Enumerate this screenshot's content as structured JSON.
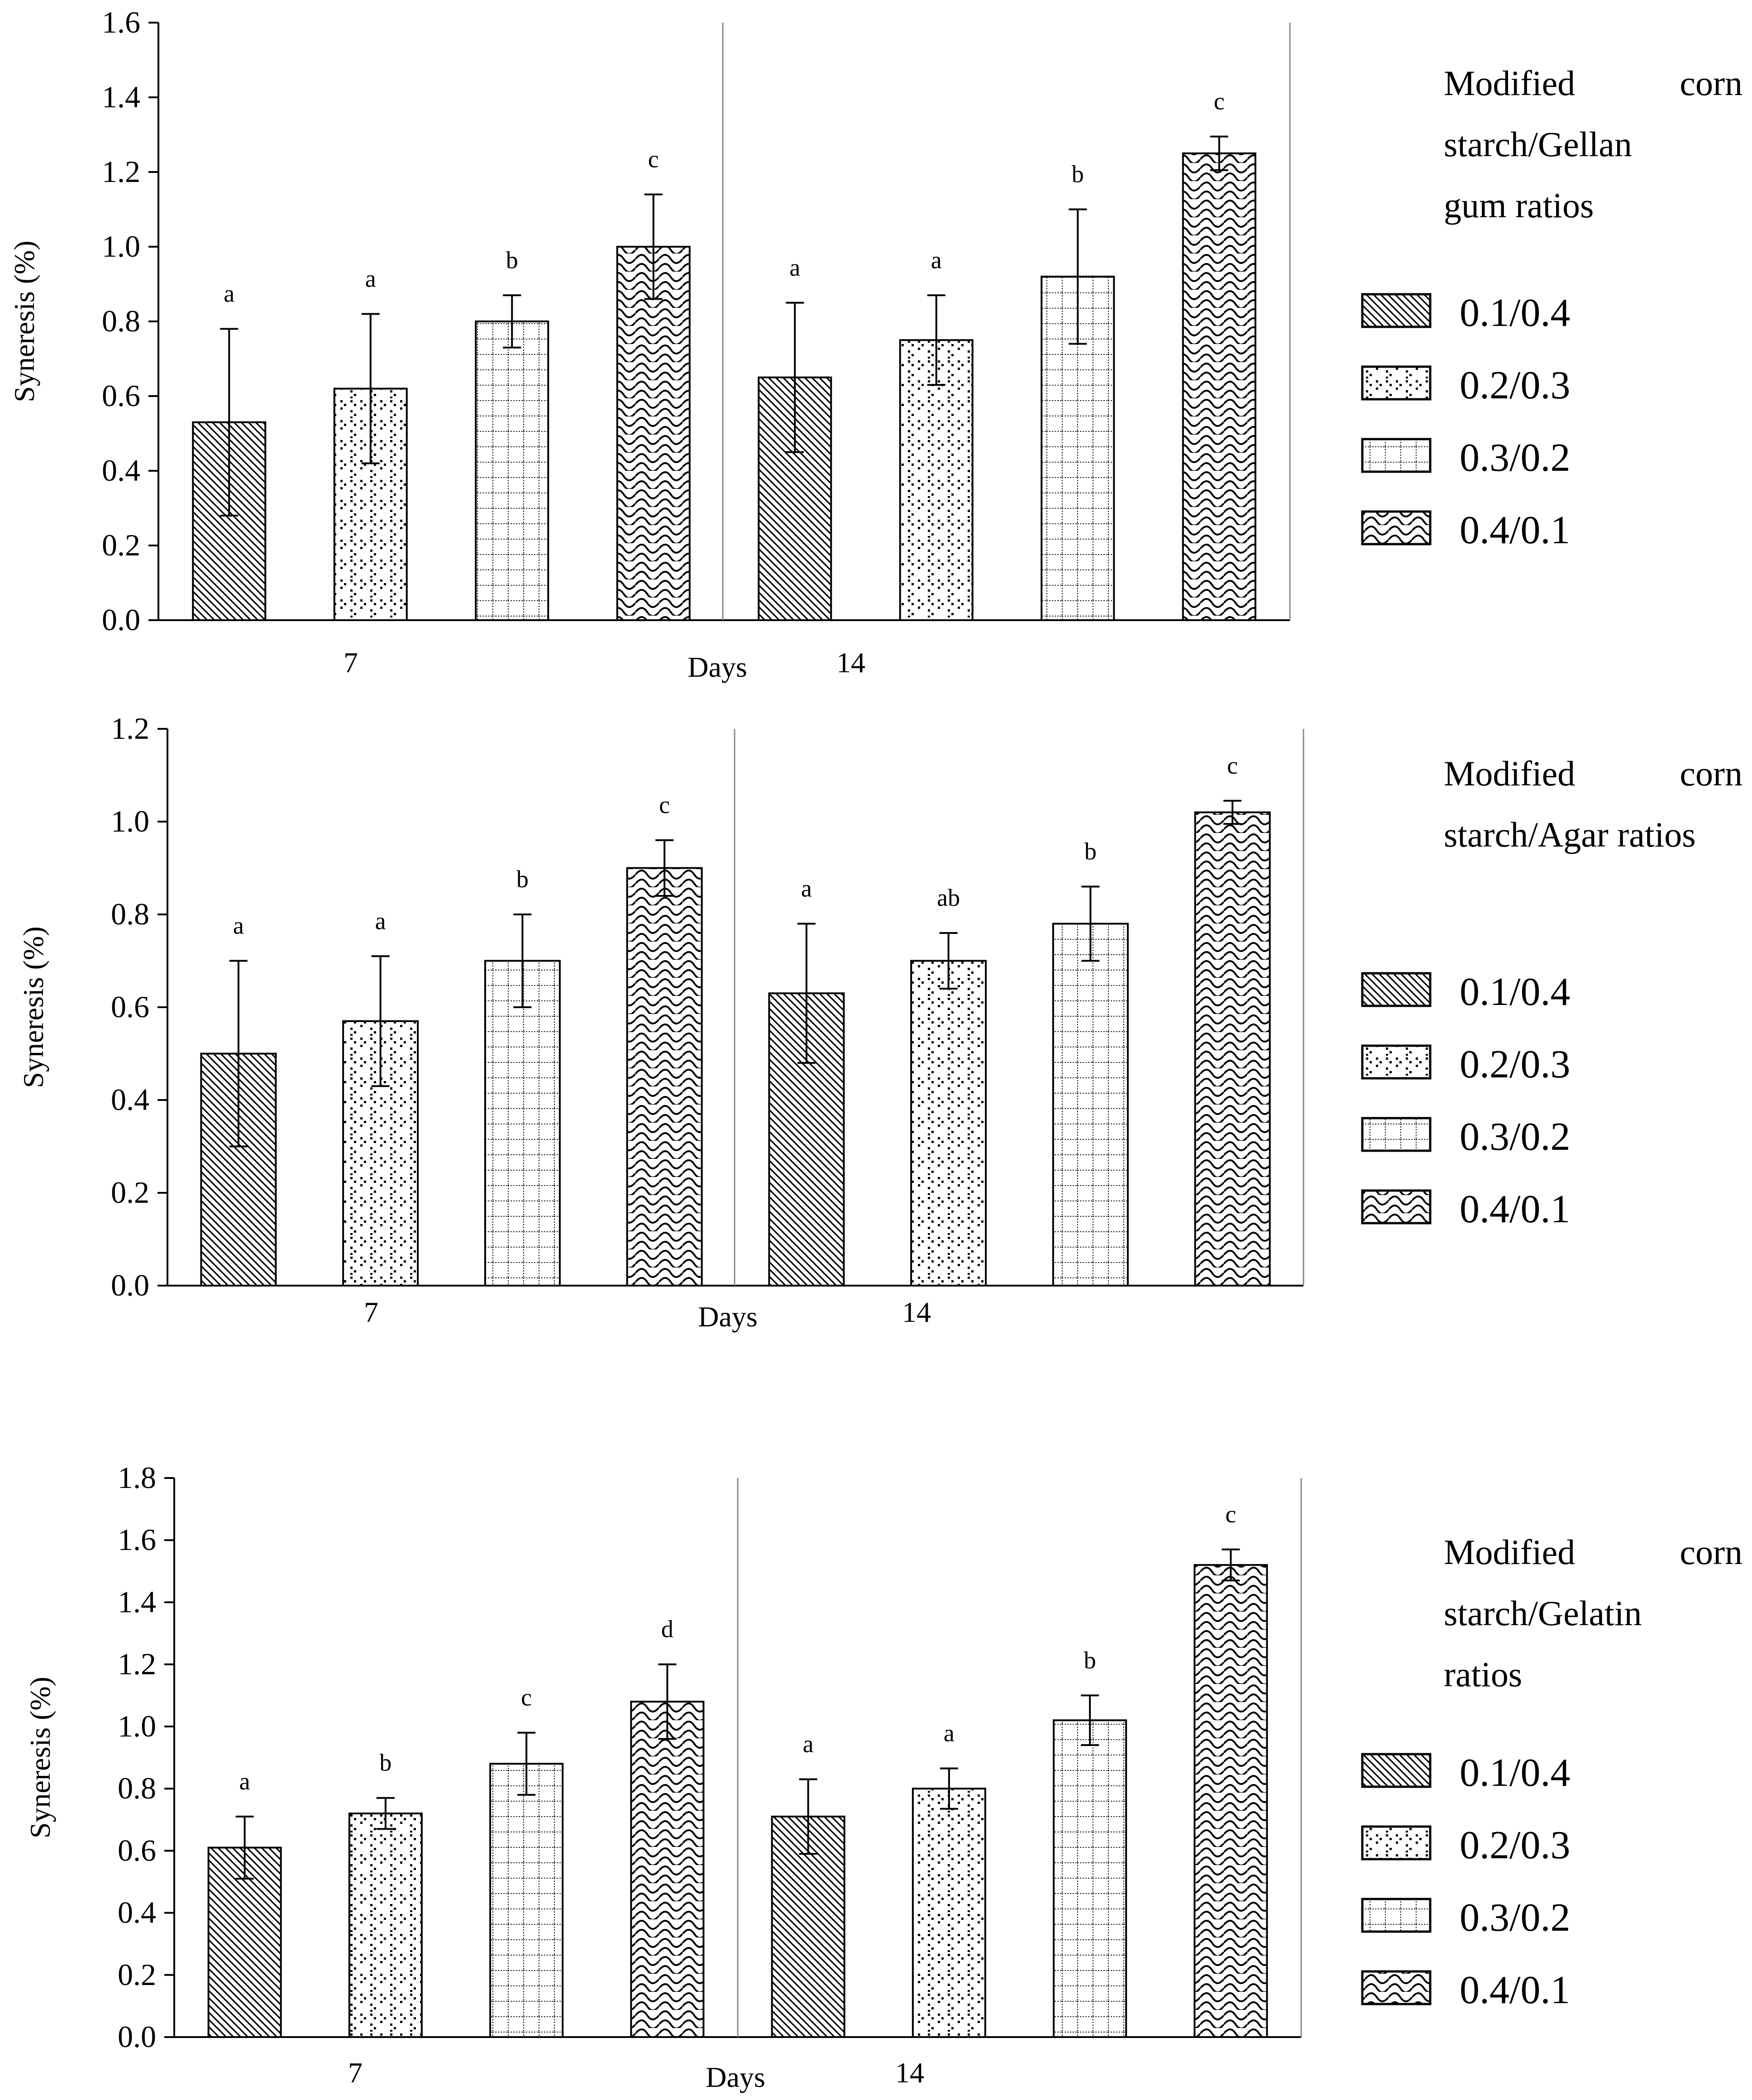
{
  "chart_data": [
    {
      "type": "bar",
      "ylabel": "Syneresis (%)",
      "xlabel": "Days",
      "groups": [
        "7",
        "14"
      ],
      "ylim": [
        0,
        1.6
      ],
      "yticks": [
        "0.0",
        "0.2",
        "0.4",
        "0.6",
        "0.8",
        "1.0",
        "1.2",
        "1.4",
        "1.6"
      ],
      "legend_title_lines": [
        "Modified corn",
        "starch/Gellan",
        "gum ratios"
      ],
      "legend_placement": "right",
      "series": [
        {
          "name": "0.1/0.4",
          "pattern": "diagonal-lines",
          "values": [
            0.53,
            0.65
          ],
          "errors": [
            0.25,
            0.2
          ],
          "letters": [
            "a",
            "a"
          ]
        },
        {
          "name": "0.2/0.3",
          "pattern": "dots",
          "values": [
            0.62,
            0.75
          ],
          "errors": [
            0.2,
            0.12
          ],
          "letters": [
            "a",
            "a"
          ]
        },
        {
          "name": "0.3/0.2",
          "pattern": "dotted-grid",
          "values": [
            0.8,
            0.92
          ],
          "errors": [
            0.07,
            0.18
          ],
          "letters": [
            "b",
            "b"
          ]
        },
        {
          "name": "0.4/0.1",
          "pattern": "waves",
          "values": [
            1.0,
            1.25
          ],
          "errors": [
            0.14,
            0.045
          ],
          "letters": [
            "c",
            "c"
          ]
        }
      ]
    },
    {
      "type": "bar",
      "ylabel": "Syneresis (%)",
      "xlabel": "Days",
      "groups": [
        "7",
        "14"
      ],
      "ylim": [
        0,
        1.2
      ],
      "yticks": [
        "0.0",
        "0.2",
        "0.4",
        "0.6",
        "0.8",
        "1.0",
        "1.2"
      ],
      "legend_title_lines": [
        "Modified corn",
        "starch/Agar ratios"
      ],
      "legend_placement": "right",
      "series": [
        {
          "name": "0.1/0.4",
          "pattern": "diagonal-lines",
          "values": [
            0.5,
            0.63
          ],
          "errors": [
            0.2,
            0.15
          ],
          "letters": [
            "a",
            "a"
          ]
        },
        {
          "name": "0.2/0.3",
          "pattern": "dots",
          "values": [
            0.57,
            0.7
          ],
          "errors": [
            0.14,
            0.06
          ],
          "letters": [
            "a",
            "ab"
          ]
        },
        {
          "name": "0.3/0.2",
          "pattern": "dotted-grid",
          "values": [
            0.7,
            0.78
          ],
          "errors": [
            0.1,
            0.08
          ],
          "letters": [
            "b",
            "b"
          ]
        },
        {
          "name": "0.4/0.1",
          "pattern": "waves",
          "values": [
            0.9,
            1.02
          ],
          "errors": [
            0.06,
            0.025
          ],
          "letters": [
            "c",
            "c"
          ]
        }
      ]
    },
    {
      "type": "bar",
      "ylabel": "Syneresis (%)",
      "xlabel": "Days",
      "groups": [
        "7",
        "14"
      ],
      "ylim": [
        0,
        1.8
      ],
      "yticks": [
        "0.0",
        "0.2",
        "0.4",
        "0.6",
        "0.8",
        "1.0",
        "1.2",
        "1.4",
        "1.6",
        "1.8"
      ],
      "legend_title_lines": [
        "Modified corn",
        "starch/Gelatin",
        "ratios"
      ],
      "legend_placement": "right",
      "series": [
        {
          "name": "0.1/0.4",
          "pattern": "diagonal-lines",
          "values": [
            0.61,
            0.71
          ],
          "errors": [
            0.1,
            0.12
          ],
          "letters": [
            "a",
            "a"
          ]
        },
        {
          "name": "0.2/0.3",
          "pattern": "dots",
          "values": [
            0.72,
            0.8
          ],
          "errors": [
            0.05,
            0.065
          ],
          "letters": [
            "b",
            "a"
          ]
        },
        {
          "name": "0.3/0.2",
          "pattern": "dotted-grid",
          "values": [
            0.88,
            1.02
          ],
          "errors": [
            0.1,
            0.08
          ],
          "letters": [
            "c",
            "b"
          ]
        },
        {
          "name": "0.4/0.1",
          "pattern": "waves",
          "values": [
            1.08,
            1.52
          ],
          "errors": [
            0.12,
            0.05
          ],
          "letters": [
            "d",
            "c"
          ]
        }
      ]
    }
  ]
}
